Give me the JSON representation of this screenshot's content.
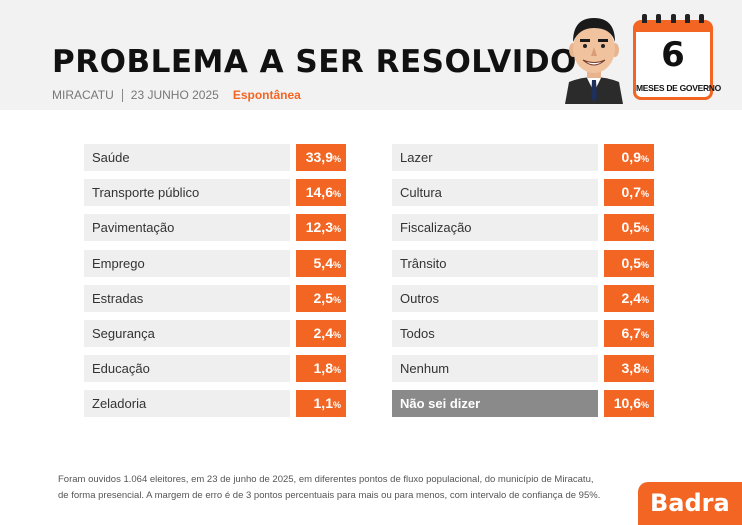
{
  "header": {
    "title": "PROBLEMA A SER RESOLVIDO",
    "city": "MIRACATU",
    "date": "23 JUNHO 2025",
    "type": "Espontânea"
  },
  "calendar": {
    "number": "6",
    "label": "MESES DE GOVERNO"
  },
  "chart_data": {
    "type": "table",
    "title": "PROBLEMA A SER RESOLVIDO",
    "unit": "%",
    "left": [
      {
        "label": "Saúde",
        "value": "33,9"
      },
      {
        "label": "Transporte público",
        "value": "14,6"
      },
      {
        "label": "Pavimentação",
        "value": "12,3"
      },
      {
        "label": "Emprego",
        "value": "5,4"
      },
      {
        "label": "Estradas",
        "value": "2,5"
      },
      {
        "label": "Segurança",
        "value": "2,4"
      },
      {
        "label": "Educação",
        "value": "1,8"
      },
      {
        "label": "Zeladoria",
        "value": "1,1"
      }
    ],
    "right": [
      {
        "label": "Lazer",
        "value": "0,9"
      },
      {
        "label": "Cultura",
        "value": "0,7"
      },
      {
        "label": "Fiscalização",
        "value": "0,5"
      },
      {
        "label": "Trânsito",
        "value": "0,5"
      },
      {
        "label": "Outros",
        "value": "2,4"
      },
      {
        "label": "Todos",
        "value": "6,7"
      },
      {
        "label": "Nenhum",
        "value": "3,8"
      },
      {
        "label": "Não sei dizer",
        "value": "10,6"
      }
    ]
  },
  "footnote": {
    "line1": "Foram ouvidos 1.064 eleitores, em 23 de junho de 2025, em diferentes pontos de fluxo populacional, do município de Miracatu,",
    "line2": "de forma presencial. A margem de erro é de 3 pontos percentuais para mais ou para menos, com intervalo de confiança de 95%."
  },
  "brand": {
    "name": "Badra"
  },
  "colors": {
    "accent": "#f26522",
    "row_bg": "#efefef",
    "highlight_row": "#8a8a8a"
  }
}
